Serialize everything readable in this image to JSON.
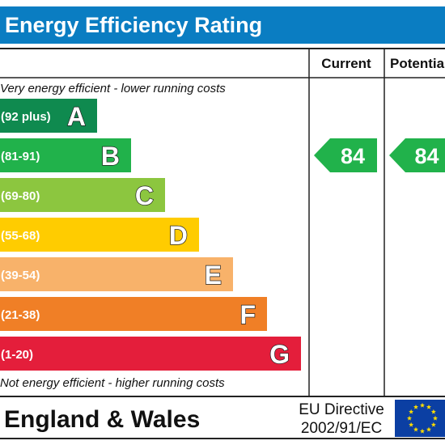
{
  "chart_data": {
    "type": "bar",
    "title": "Energy Efficiency Rating",
    "columns": [
      "Current",
      "Potential"
    ],
    "top_note": "Very energy efficient - lower running costs",
    "bottom_note": "Not energy efficient - higher running costs",
    "bands": [
      {
        "letter": "A",
        "range": "(92 plus)",
        "color": "#0f8a4f"
      },
      {
        "letter": "B",
        "range": "(81-91)",
        "color": "#21b24b"
      },
      {
        "letter": "C",
        "range": "(69-80)",
        "color": "#8cc63f"
      },
      {
        "letter": "D",
        "range": "(55-68)",
        "color": "#ffcc00"
      },
      {
        "letter": "E",
        "range": "(39-54)",
        "color": "#f8b26a"
      },
      {
        "letter": "F",
        "range": "(21-38)",
        "color": "#f07f26"
      },
      {
        "letter": "G",
        "range": "(1-20)",
        "color": "#e41e3b"
      }
    ],
    "current": {
      "value": 84,
      "band": "B",
      "color": "#21b24b"
    },
    "potential": {
      "value": 84,
      "band": "B",
      "color": "#21b24b"
    }
  },
  "footer": {
    "region": "England & Wales",
    "directive_line1": "EU Directive",
    "directive_line2": "2002/91/EC"
  },
  "colors": {
    "title_bar": "#0a7dc2",
    "frame": "#222222",
    "eu_flag": "#0b3fa3",
    "eu_stars": "#ffdd00"
  }
}
